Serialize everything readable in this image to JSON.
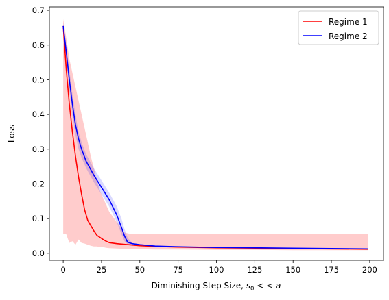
{
  "chart_data": {
    "type": "line",
    "title": "",
    "xlabel": "Diminishing Step Size, ",
    "xlabel_math": "s",
    "xlabel_math_sub": "0",
    "xlabel_math_rest": " < < a",
    "ylabel": "Loss",
    "xlim": [
      -9,
      209
    ],
    "ylim": [
      -0.02,
      0.71
    ],
    "xticks": [
      0,
      25,
      50,
      75,
      100,
      125,
      150,
      175,
      200
    ],
    "xtick_labels": [
      "0",
      "25",
      "50",
      "75",
      "100",
      "125",
      "150",
      "175",
      "200"
    ],
    "yticks": [
      0.0,
      0.1,
      0.2,
      0.3,
      0.4,
      0.5,
      0.6,
      0.7
    ],
    "ytick_labels": [
      "0.0",
      "0.1",
      "0.2",
      "0.3",
      "0.4",
      "0.5",
      "0.6",
      "0.7"
    ],
    "grid": false,
    "legend": "top-right",
    "series": [
      {
        "name": "Regime 1",
        "color": "#ff0000",
        "band_color": "#ff0000",
        "x": [
          0,
          2,
          4,
          6,
          8,
          10,
          12,
          14,
          16,
          18,
          20,
          22,
          24,
          26,
          28,
          30,
          35,
          40,
          45,
          50,
          60,
          75,
          100,
          125,
          150,
          175,
          199
        ],
        "values": [
          0.655,
          0.53,
          0.43,
          0.35,
          0.28,
          0.22,
          0.17,
          0.125,
          0.095,
          0.08,
          0.065,
          0.052,
          0.046,
          0.04,
          0.035,
          0.031,
          0.028,
          0.026,
          0.024,
          0.022,
          0.02,
          0.018,
          0.016,
          0.015,
          0.014,
          0.013,
          0.012
        ],
        "upper": [
          0.675,
          0.62,
          0.56,
          0.52,
          0.48,
          0.44,
          0.4,
          0.36,
          0.32,
          0.28,
          0.245,
          0.21,
          0.18,
          0.16,
          0.14,
          0.12,
          0.09,
          0.06,
          0.055,
          0.055,
          0.055,
          0.055,
          0.055,
          0.055,
          0.055,
          0.055,
          0.055
        ],
        "lower": [
          0.055,
          0.055,
          0.03,
          0.035,
          0.025,
          0.04,
          0.03,
          0.028,
          0.025,
          0.022,
          0.02,
          0.02,
          0.018,
          0.018,
          0.016,
          0.015,
          0.014,
          0.013,
          0.012,
          0.012,
          0.011,
          0.011,
          0.01,
          0.01,
          0.009,
          0.009,
          0.009
        ]
      },
      {
        "name": "Regime 2",
        "color": "#0000ff",
        "band_color": "#0000ff",
        "x": [
          0,
          2,
          4,
          6,
          8,
          10,
          12,
          15,
          20,
          25,
          30,
          35,
          38,
          40,
          42,
          45,
          50,
          60,
          75,
          100,
          125,
          150,
          175,
          199
        ],
        "values": [
          0.655,
          0.58,
          0.5,
          0.43,
          0.37,
          0.33,
          0.3,
          0.265,
          0.225,
          0.19,
          0.155,
          0.11,
          0.075,
          0.05,
          0.032,
          0.028,
          0.025,
          0.021,
          0.019,
          0.017,
          0.016,
          0.015,
          0.014,
          0.013
        ],
        "upper": [
          0.665,
          0.6,
          0.53,
          0.46,
          0.4,
          0.35,
          0.32,
          0.285,
          0.245,
          0.21,
          0.175,
          0.135,
          0.1,
          0.07,
          0.045,
          0.03,
          0.026,
          0.022,
          0.02,
          0.018,
          0.017,
          0.016,
          0.015,
          0.014
        ],
        "lower": [
          0.645,
          0.56,
          0.47,
          0.4,
          0.34,
          0.3,
          0.275,
          0.245,
          0.205,
          0.17,
          0.135,
          0.09,
          0.055,
          0.035,
          0.026,
          0.025,
          0.023,
          0.02,
          0.018,
          0.016,
          0.015,
          0.014,
          0.013,
          0.012
        ]
      }
    ]
  }
}
